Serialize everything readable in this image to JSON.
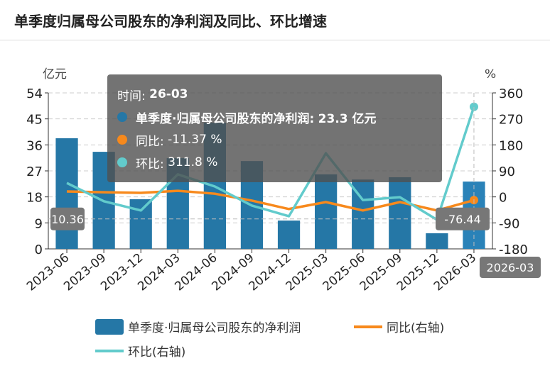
{
  "title": "单季度归属母公司股东的净利润及同比、环比增速",
  "chart_data": {
    "type": "bar+line",
    "title": "单季度归属母公司股东的净利润及同比、环比增速",
    "categories": [
      "2023-06",
      "2023-09",
      "2023-12",
      "2024-03",
      "2024-06",
      "2024-09",
      "2024-12",
      "2025-03",
      "2025-06",
      "2025-09",
      "2025-12",
      "2026-03"
    ],
    "left_axis": {
      "unit": "亿元",
      "ylim": [
        0,
        54
      ],
      "ticks": [
        0,
        9,
        18,
        27,
        36,
        45,
        54
      ]
    },
    "right_axis": {
      "unit": "%",
      "ylim": [
        -180,
        360
      ],
      "ticks": [
        -180,
        -90,
        0,
        90,
        180,
        270,
        360
      ]
    },
    "series": [
      {
        "name": "单季度·归属母公司股东的净利润",
        "type": "bar",
        "axis": "left",
        "color": "#2577a6",
        "values": [
          38.3,
          33.6,
          17.2,
          31.4,
          43.7,
          30.4,
          9.8,
          25.8,
          24.0,
          24.8,
          5.4,
          23.3
        ]
      },
      {
        "name": "同比(右轴)",
        "type": "line",
        "axis": "right",
        "color": "#f7891c",
        "values": [
          18.8,
          16,
          14,
          21,
          11,
          -13,
          -42,
          -18,
          -47,
          -18,
          -47,
          -11.37
        ]
      },
      {
        "name": "环比(右轴)",
        "type": "line",
        "axis": "right",
        "color": "#62cbcc",
        "values": [
          48,
          -15,
          -47,
          78,
          36,
          -30,
          -67,
          151,
          -11,
          -1,
          -79,
          311.8
        ]
      }
    ],
    "grid": true,
    "legend_position": "bottom"
  },
  "legend": [
    "单季度·归属母公司股东的净利润",
    "同比(右轴)",
    "环比(右轴)"
  ],
  "crosshair": {
    "left_value": "10.36",
    "right_value": "-76.44",
    "x_value": "2026-03"
  },
  "tooltip": {
    "time_label": "时间:",
    "time_value": "26-03",
    "rows": [
      {
        "label": "单季度·归属母公司股东的净利润:",
        "value": "23.3  亿元",
        "color": "#2577a6"
      },
      {
        "label": "同比:",
        "value": "-11.37  %",
        "color": "#f7891c"
      },
      {
        "label": "环比:",
        "value": "311.8  %",
        "color": "#62cbcc"
      }
    ]
  }
}
